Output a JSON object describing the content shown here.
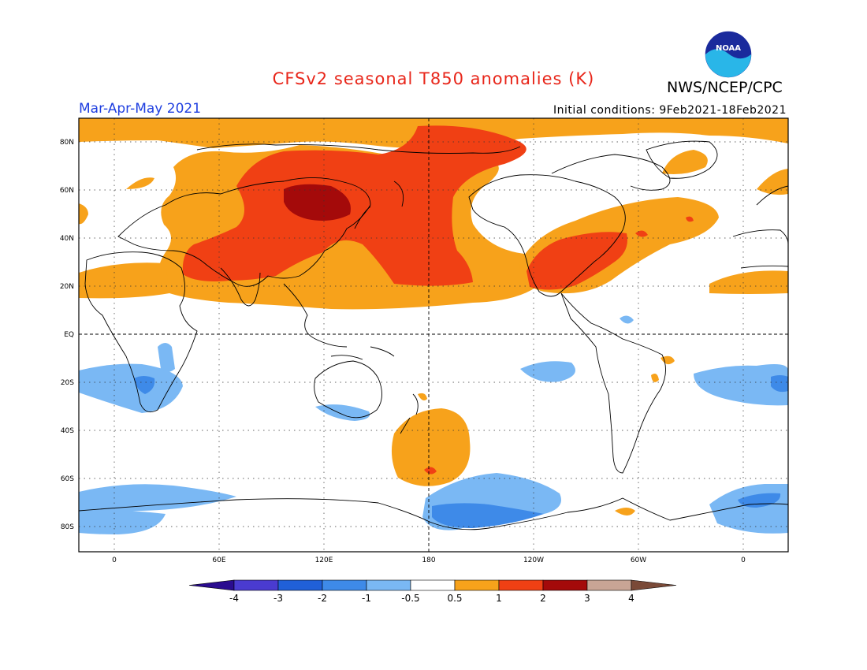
{
  "title": "CFSv2 seasonal T850 anomalies (K)",
  "org": "NWS/NCEP/CPC",
  "period": "Mar-Apr-May 2021",
  "initial_conditions": "Initial conditions: 9Feb2021-18Feb2021",
  "logo_text": "NOAA",
  "lat_labels": [
    "80N",
    "60N",
    "40N",
    "20N",
    "EQ",
    "20S",
    "40S",
    "60S",
    "80S"
  ],
  "lon_labels": [
    "0",
    "60E",
    "120E",
    "180",
    "120W",
    "60W",
    "0"
  ],
  "colorbar": {
    "tick_labels": [
      "-4",
      "-3",
      "-2",
      "-1",
      "-0.5",
      "0.5",
      "1",
      "2",
      "3",
      "4"
    ],
    "colors": [
      "#2a0c8f",
      "#4a3bd0",
      "#2060d8",
      "#3e8ae8",
      "#7ab8f4",
      "#ffffff",
      "#f7a21b",
      "#f04014",
      "#a40a0a",
      "#c8a595",
      "#7a4a38"
    ]
  },
  "colors": {
    "title": "#e8261a",
    "period": "#1f3fe0",
    "warm_weak": "#f7a21b",
    "warm_mod": "#f04014",
    "warm_strong": "#a40a0a",
    "cold_weak": "#7ab8f4",
    "cold_mod": "#3e8ae8"
  }
}
